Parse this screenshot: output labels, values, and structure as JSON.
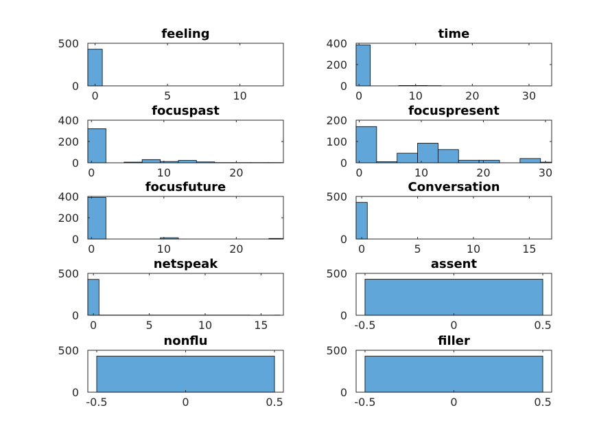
{
  "chart_data": [
    {
      "type": "bar",
      "title": "feeling",
      "xlim": [
        -0.5,
        13
      ],
      "ylim": [
        0,
        500
      ],
      "xticks": [
        0,
        5,
        10
      ],
      "yticks": [
        0,
        500
      ],
      "bins": [
        {
          "x0": -0.5,
          "x1": 0.5,
          "y": 430
        }
      ]
    },
    {
      "type": "bar",
      "title": "time",
      "xlim": [
        -0.5,
        34
      ],
      "ylim": [
        0,
        400
      ],
      "xticks": [
        0,
        10,
        20,
        30
      ],
      "yticks": [
        0,
        200,
        400
      ],
      "bins": [
        {
          "x0": -0.5,
          "x1": 2,
          "y": 385
        },
        {
          "x0": 2,
          "x1": 4.5,
          "y": 0
        },
        {
          "x0": 4.5,
          "x1": 7,
          "y": 0
        },
        {
          "x0": 7,
          "x1": 9.5,
          "y": 3
        },
        {
          "x0": 9.5,
          "x1": 12,
          "y": 3
        },
        {
          "x0": 12,
          "x1": 14.5,
          "y": 2
        }
      ]
    },
    {
      "type": "bar",
      "title": "focuspast",
      "xlim": [
        -0.5,
        26.5
      ],
      "ylim": [
        0,
        400
      ],
      "xticks": [
        0,
        10,
        20
      ],
      "yticks": [
        0,
        200,
        400
      ],
      "bins": [
        {
          "x0": -0.5,
          "x1": 2,
          "y": 320
        },
        {
          "x0": 2,
          "x1": 4.5,
          "y": 0
        },
        {
          "x0": 4.5,
          "x1": 7,
          "y": 6
        },
        {
          "x0": 7,
          "x1": 9.5,
          "y": 30
        },
        {
          "x0": 9.5,
          "x1": 12,
          "y": 12
        },
        {
          "x0": 12,
          "x1": 14.5,
          "y": 22
        },
        {
          "x0": 14.5,
          "x1": 17,
          "y": 8
        },
        {
          "x0": 17,
          "x1": 19.5,
          "y": 2
        },
        {
          "x0": 19.5,
          "x1": 22,
          "y": 2
        },
        {
          "x0": 22,
          "x1": 24.5,
          "y": 2
        },
        {
          "x0": 24.5,
          "x1": 26.5,
          "y": 2
        }
      ]
    },
    {
      "type": "bar",
      "title": "focuspresent",
      "xlim": [
        -0.5,
        31
      ],
      "ylim": [
        0,
        200
      ],
      "xticks": [
        0,
        10,
        20,
        30
      ],
      "yticks": [
        0,
        100,
        200
      ],
      "bins": [
        {
          "x0": -0.5,
          "x1": 2.8,
          "y": 170
        },
        {
          "x0": 2.8,
          "x1": 6.1,
          "y": 5
        },
        {
          "x0": 6.1,
          "x1": 9.4,
          "y": 45
        },
        {
          "x0": 9.4,
          "x1": 12.7,
          "y": 92
        },
        {
          "x0": 12.7,
          "x1": 16,
          "y": 62
        },
        {
          "x0": 16,
          "x1": 19.3,
          "y": 12
        },
        {
          "x0": 19.3,
          "x1": 22.6,
          "y": 12
        },
        {
          "x0": 22.6,
          "x1": 25.9,
          "y": 0
        },
        {
          "x0": 25.9,
          "x1": 29.2,
          "y": 20
        },
        {
          "x0": 29.2,
          "x1": 31,
          "y": 3
        }
      ]
    },
    {
      "type": "bar",
      "title": "focusfuture",
      "xlim": [
        -0.5,
        26.5
      ],
      "ylim": [
        0,
        400
      ],
      "xticks": [
        0,
        10,
        20
      ],
      "yticks": [
        0,
        200,
        400
      ],
      "bins": [
        {
          "x0": -0.5,
          "x1": 2,
          "y": 390
        },
        {
          "x0": 9.5,
          "x1": 12,
          "y": 12
        },
        {
          "x0": 24.5,
          "x1": 26.5,
          "y": 5
        }
      ]
    },
    {
      "type": "bar",
      "title": "Conversation",
      "xlim": [
        -0.5,
        17
      ],
      "ylim": [
        0,
        500
      ],
      "xticks": [
        0,
        5,
        10,
        15
      ],
      "yticks": [
        0,
        500
      ],
      "bins": [
        {
          "x0": -0.5,
          "x1": 0.5,
          "y": 430
        }
      ]
    },
    {
      "type": "bar",
      "title": "netspeak",
      "xlim": [
        -0.5,
        17
      ],
      "ylim": [
        0,
        500
      ],
      "xticks": [
        0,
        5,
        10,
        15
      ],
      "yticks": [
        0,
        500
      ],
      "bins": [
        {
          "x0": -0.5,
          "x1": 0.5,
          "y": 428
        },
        {
          "x0": 0.5,
          "x1": 14,
          "y": 2
        },
        {
          "x0": 14,
          "x1": 16.2,
          "y": 1
        },
        {
          "x0": 16.2,
          "x1": 16.7,
          "y": 2
        }
      ]
    },
    {
      "type": "bar",
      "title": "assent",
      "xlim": [
        -0.55,
        0.55
      ],
      "ylim": [
        0,
        500
      ],
      "xticks": [
        -0.5,
        0,
        0.5
      ],
      "xticklabels": [
        "-0.5",
        "0",
        "0.5"
      ],
      "yticks": [
        0,
        500
      ],
      "bins": [
        {
          "x0": -0.5,
          "x1": 0.5,
          "y": 430
        }
      ]
    },
    {
      "type": "bar",
      "title": "nonflu",
      "xlim": [
        -0.55,
        0.55
      ],
      "ylim": [
        0,
        500
      ],
      "xticks": [
        -0.5,
        0,
        0.5
      ],
      "xticklabels": [
        "-0.5",
        "0",
        "0.5"
      ],
      "yticks": [
        0,
        500
      ],
      "bins": [
        {
          "x0": -0.5,
          "x1": 0.5,
          "y": 430
        }
      ]
    },
    {
      "type": "bar",
      "title": "filler",
      "xlim": [
        -0.55,
        0.55
      ],
      "ylim": [
        0,
        500
      ],
      "xticks": [
        -0.5,
        0,
        0.5
      ],
      "xticklabels": [
        "-0.5",
        "0",
        "0.5"
      ],
      "yticks": [
        0,
        500
      ],
      "bins": [
        {
          "x0": -0.5,
          "x1": 0.5,
          "y": 430
        }
      ]
    }
  ]
}
